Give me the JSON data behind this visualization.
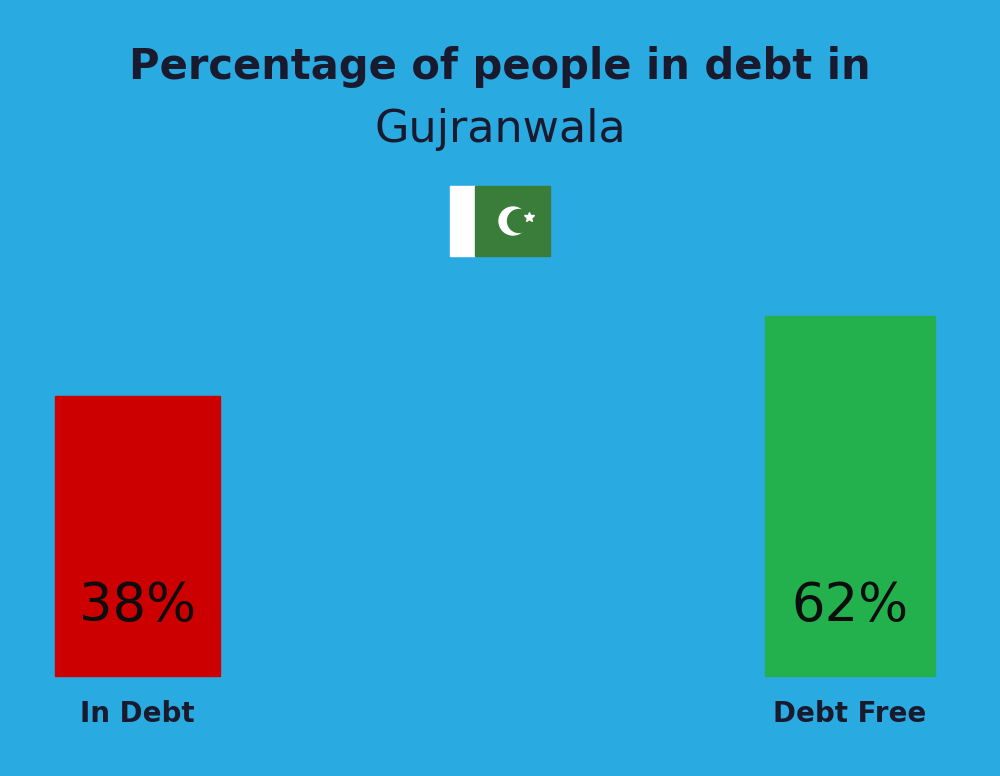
{
  "title_line1": "Percentage of people in debt in",
  "title_line2": "Gujranwala",
  "background_color": "#29ABE2",
  "bar1_label": "38%",
  "bar1_color": "#CC0000",
  "bar1_category": "In Debt",
  "bar2_label": "62%",
  "bar2_color": "#22B14C",
  "bar2_category": "Debt Free",
  "title_color": "#1a1a2e",
  "label_color": "#0d0d0d",
  "category_color": "#1a1a2e",
  "title_fontsize": 30,
  "subtitle_fontsize": 32,
  "bar_label_fontsize": 38,
  "category_fontsize": 20,
  "flag_green": "#3d9e3d",
  "flag_white": "#ffffff",
  "flag_dark_green": "#1a6e1a"
}
